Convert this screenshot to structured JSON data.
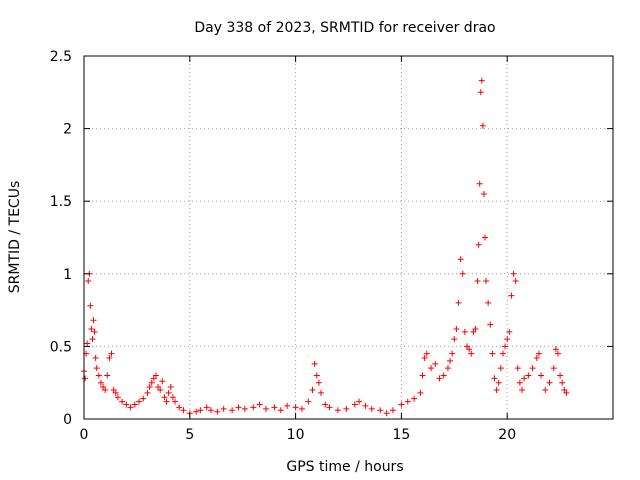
{
  "chart_data": {
    "type": "scatter",
    "title": "Day 338 of 2023, SRMTID for receiver drao",
    "xlabel": "GPS time / hours",
    "ylabel": "SRMTID / TECUs",
    "xlim": [
      0,
      25
    ],
    "ylim": [
      0,
      2.5
    ],
    "xticks": [
      0,
      5,
      10,
      15,
      20
    ],
    "xtick_labels": [
      "0",
      "5",
      "10",
      "15",
      "20"
    ],
    "yticks": [
      0,
      0.5,
      1,
      1.5,
      2,
      2.5
    ],
    "ytick_labels": [
      "0",
      "0.5",
      "1",
      "1.5",
      "2",
      "2.5"
    ],
    "grid": true,
    "marker": "plus",
    "color": "#ff0000",
    "series": [
      {
        "name": "SRMTID",
        "points": [
          [
            0.0,
            0.33
          ],
          [
            0.05,
            0.28
          ],
          [
            0.1,
            0.45
          ],
          [
            0.15,
            0.52
          ],
          [
            0.2,
            0.95
          ],
          [
            0.25,
            1.0
          ],
          [
            0.3,
            0.78
          ],
          [
            0.35,
            0.62
          ],
          [
            0.4,
            0.55
          ],
          [
            0.45,
            0.68
          ],
          [
            0.5,
            0.6
          ],
          [
            0.55,
            0.42
          ],
          [
            0.6,
            0.35
          ],
          [
            0.7,
            0.3
          ],
          [
            0.8,
            0.25
          ],
          [
            0.9,
            0.22
          ],
          [
            1.0,
            0.2
          ],
          [
            1.1,
            0.3
          ],
          [
            1.2,
            0.42
          ],
          [
            1.3,
            0.45
          ],
          [
            1.4,
            0.2
          ],
          [
            1.5,
            0.18
          ],
          [
            1.6,
            0.15
          ],
          [
            1.8,
            0.12
          ],
          [
            2.0,
            0.1
          ],
          [
            2.2,
            0.08
          ],
          [
            2.4,
            0.1
          ],
          [
            2.6,
            0.12
          ],
          [
            2.8,
            0.14
          ],
          [
            3.0,
            0.18
          ],
          [
            3.1,
            0.22
          ],
          [
            3.2,
            0.25
          ],
          [
            3.3,
            0.28
          ],
          [
            3.4,
            0.3
          ],
          [
            3.5,
            0.22
          ],
          [
            3.6,
            0.2
          ],
          [
            3.7,
            0.26
          ],
          [
            3.8,
            0.15
          ],
          [
            3.9,
            0.12
          ],
          [
            4.0,
            0.18
          ],
          [
            4.1,
            0.22
          ],
          [
            4.2,
            0.15
          ],
          [
            4.3,
            0.12
          ],
          [
            4.5,
            0.08
          ],
          [
            4.7,
            0.06
          ],
          [
            5.0,
            0.04
          ],
          [
            5.3,
            0.05
          ],
          [
            5.5,
            0.06
          ],
          [
            5.8,
            0.08
          ],
          [
            6.0,
            0.06
          ],
          [
            6.3,
            0.05
          ],
          [
            6.6,
            0.07
          ],
          [
            7.0,
            0.06
          ],
          [
            7.3,
            0.08
          ],
          [
            7.6,
            0.07
          ],
          [
            8.0,
            0.08
          ],
          [
            8.3,
            0.1
          ],
          [
            8.6,
            0.07
          ],
          [
            9.0,
            0.08
          ],
          [
            9.3,
            0.06
          ],
          [
            9.6,
            0.09
          ],
          [
            10.0,
            0.08
          ],
          [
            10.3,
            0.07
          ],
          [
            10.6,
            0.12
          ],
          [
            10.8,
            0.2
          ],
          [
            10.9,
            0.38
          ],
          [
            11.0,
            0.3
          ],
          [
            11.1,
            0.25
          ],
          [
            11.2,
            0.18
          ],
          [
            11.4,
            0.1
          ],
          [
            11.6,
            0.08
          ],
          [
            12.0,
            0.06
          ],
          [
            12.4,
            0.07
          ],
          [
            12.8,
            0.1
          ],
          [
            13.0,
            0.12
          ],
          [
            13.3,
            0.09
          ],
          [
            13.6,
            0.07
          ],
          [
            14.0,
            0.06
          ],
          [
            14.3,
            0.04
          ],
          [
            14.6,
            0.06
          ],
          [
            15.0,
            0.1
          ],
          [
            15.3,
            0.12
          ],
          [
            15.6,
            0.14
          ],
          [
            15.9,
            0.18
          ],
          [
            16.0,
            0.3
          ],
          [
            16.1,
            0.42
          ],
          [
            16.2,
            0.45
          ],
          [
            16.4,
            0.35
          ],
          [
            16.6,
            0.38
          ],
          [
            16.8,
            0.28
          ],
          [
            17.0,
            0.3
          ],
          [
            17.2,
            0.35
          ],
          [
            17.3,
            0.4
          ],
          [
            17.4,
            0.45
          ],
          [
            17.5,
            0.55
          ],
          [
            17.6,
            0.62
          ],
          [
            17.7,
            0.8
          ],
          [
            17.8,
            1.1
          ],
          [
            17.9,
            1.0
          ],
          [
            18.0,
            0.6
          ],
          [
            18.1,
            0.5
          ],
          [
            18.2,
            0.48
          ],
          [
            18.3,
            0.45
          ],
          [
            18.4,
            0.6
          ],
          [
            18.5,
            0.62
          ],
          [
            18.6,
            0.95
          ],
          [
            18.65,
            1.2
          ],
          [
            18.7,
            1.62
          ],
          [
            18.75,
            2.25
          ],
          [
            18.8,
            2.33
          ],
          [
            18.85,
            2.02
          ],
          [
            18.9,
            1.55
          ],
          [
            18.95,
            1.25
          ],
          [
            19.0,
            0.95
          ],
          [
            19.1,
            0.8
          ],
          [
            19.2,
            0.65
          ],
          [
            19.3,
            0.45
          ],
          [
            19.4,
            0.28
          ],
          [
            19.5,
            0.2
          ],
          [
            19.6,
            0.25
          ],
          [
            19.7,
            0.35
          ],
          [
            19.8,
            0.45
          ],
          [
            19.9,
            0.5
          ],
          [
            20.0,
            0.55
          ],
          [
            20.1,
            0.6
          ],
          [
            20.2,
            0.85
          ],
          [
            20.3,
            1.0
          ],
          [
            20.4,
            0.95
          ],
          [
            20.5,
            0.35
          ],
          [
            20.6,
            0.25
          ],
          [
            20.7,
            0.2
          ],
          [
            20.8,
            0.28
          ],
          [
            21.0,
            0.3
          ],
          [
            21.2,
            0.35
          ],
          [
            21.4,
            0.42
          ],
          [
            21.5,
            0.45
          ],
          [
            21.6,
            0.3
          ],
          [
            21.8,
            0.2
          ],
          [
            22.0,
            0.25
          ],
          [
            22.2,
            0.35
          ],
          [
            22.3,
            0.48
          ],
          [
            22.4,
            0.45
          ],
          [
            22.5,
            0.3
          ],
          [
            22.6,
            0.25
          ],
          [
            22.7,
            0.2
          ],
          [
            22.8,
            0.18
          ]
        ]
      }
    ]
  }
}
